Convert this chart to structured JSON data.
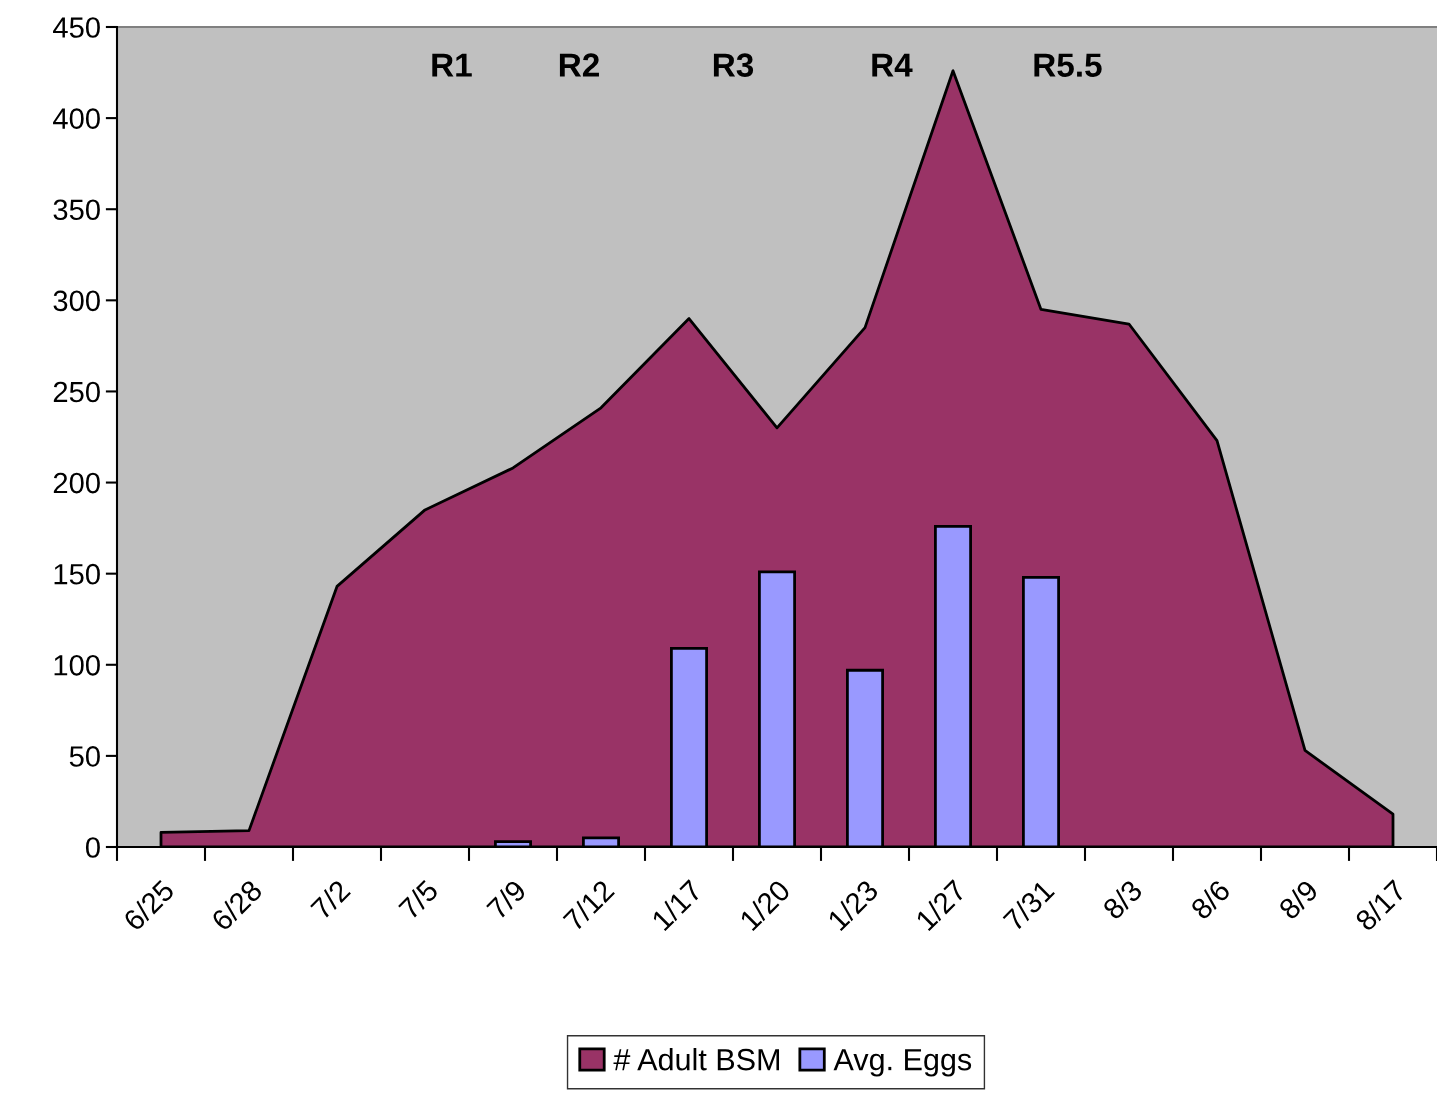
{
  "chart_data": {
    "type": "area",
    "categories": [
      "6/25",
      "6/28",
      "7/2",
      "7/5",
      "7/9",
      "7/12",
      "1/17",
      "1/20",
      "1/23",
      "1/27",
      "7/31",
      "8/3",
      "8/6",
      "8/9",
      "8/17"
    ],
    "series": [
      {
        "name": "# Adult BSM",
        "color": "#993366",
        "values": [
          8,
          9,
          143,
          185,
          208,
          241,
          290,
          230,
          285,
          426,
          295,
          287,
          223,
          53,
          18
        ]
      },
      {
        "name": "Avg. Eggs",
        "type": "bar",
        "color": "#9999ff",
        "values": [
          null,
          null,
          null,
          null,
          3,
          5,
          109,
          151,
          97,
          176,
          148,
          null,
          null,
          null,
          null
        ]
      }
    ],
    "ylim": [
      0,
      450
    ],
    "yticks": [
      0,
      50,
      100,
      150,
      200,
      250,
      300,
      350,
      400,
      450
    ],
    "grid": false,
    "legend": "bottom",
    "annotations": [
      "R1",
      "R2",
      "R3",
      "R4",
      "R5.5"
    ]
  }
}
